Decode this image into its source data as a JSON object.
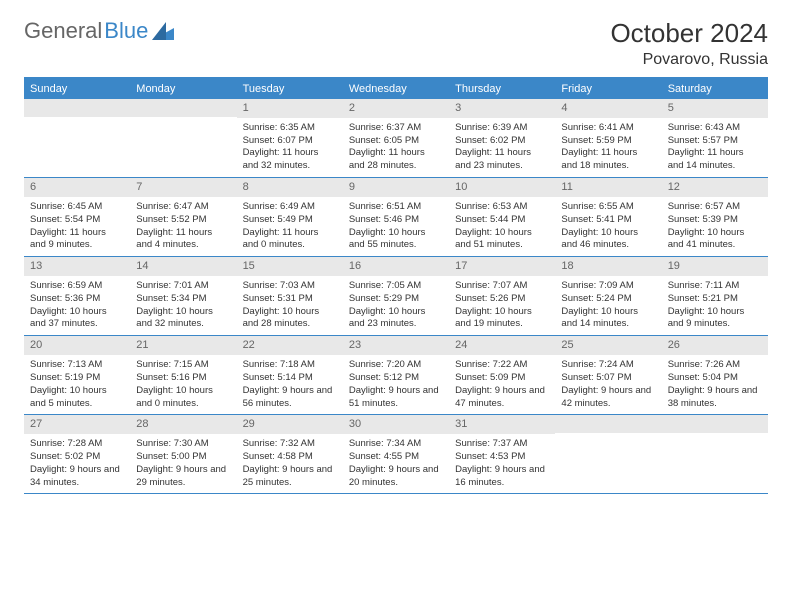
{
  "logo": {
    "text1": "General",
    "text2": "Blue"
  },
  "title": "October 2024",
  "location": "Povarovo, Russia",
  "colors": {
    "accent": "#3b87c8",
    "daynum_bg": "#e8e8e8",
    "text": "#333333",
    "muted": "#666666"
  },
  "weekdays": [
    "Sunday",
    "Monday",
    "Tuesday",
    "Wednesday",
    "Thursday",
    "Friday",
    "Saturday"
  ],
  "weeks": [
    [
      {
        "num": "",
        "sunrise": "",
        "sunset": "",
        "daylight": ""
      },
      {
        "num": "",
        "sunrise": "",
        "sunset": "",
        "daylight": ""
      },
      {
        "num": "1",
        "sunrise": "Sunrise: 6:35 AM",
        "sunset": "Sunset: 6:07 PM",
        "daylight": "Daylight: 11 hours and 32 minutes."
      },
      {
        "num": "2",
        "sunrise": "Sunrise: 6:37 AM",
        "sunset": "Sunset: 6:05 PM",
        "daylight": "Daylight: 11 hours and 28 minutes."
      },
      {
        "num": "3",
        "sunrise": "Sunrise: 6:39 AM",
        "sunset": "Sunset: 6:02 PM",
        "daylight": "Daylight: 11 hours and 23 minutes."
      },
      {
        "num": "4",
        "sunrise": "Sunrise: 6:41 AM",
        "sunset": "Sunset: 5:59 PM",
        "daylight": "Daylight: 11 hours and 18 minutes."
      },
      {
        "num": "5",
        "sunrise": "Sunrise: 6:43 AM",
        "sunset": "Sunset: 5:57 PM",
        "daylight": "Daylight: 11 hours and 14 minutes."
      }
    ],
    [
      {
        "num": "6",
        "sunrise": "Sunrise: 6:45 AM",
        "sunset": "Sunset: 5:54 PM",
        "daylight": "Daylight: 11 hours and 9 minutes."
      },
      {
        "num": "7",
        "sunrise": "Sunrise: 6:47 AM",
        "sunset": "Sunset: 5:52 PM",
        "daylight": "Daylight: 11 hours and 4 minutes."
      },
      {
        "num": "8",
        "sunrise": "Sunrise: 6:49 AM",
        "sunset": "Sunset: 5:49 PM",
        "daylight": "Daylight: 11 hours and 0 minutes."
      },
      {
        "num": "9",
        "sunrise": "Sunrise: 6:51 AM",
        "sunset": "Sunset: 5:46 PM",
        "daylight": "Daylight: 10 hours and 55 minutes."
      },
      {
        "num": "10",
        "sunrise": "Sunrise: 6:53 AM",
        "sunset": "Sunset: 5:44 PM",
        "daylight": "Daylight: 10 hours and 51 minutes."
      },
      {
        "num": "11",
        "sunrise": "Sunrise: 6:55 AM",
        "sunset": "Sunset: 5:41 PM",
        "daylight": "Daylight: 10 hours and 46 minutes."
      },
      {
        "num": "12",
        "sunrise": "Sunrise: 6:57 AM",
        "sunset": "Sunset: 5:39 PM",
        "daylight": "Daylight: 10 hours and 41 minutes."
      }
    ],
    [
      {
        "num": "13",
        "sunrise": "Sunrise: 6:59 AM",
        "sunset": "Sunset: 5:36 PM",
        "daylight": "Daylight: 10 hours and 37 minutes."
      },
      {
        "num": "14",
        "sunrise": "Sunrise: 7:01 AM",
        "sunset": "Sunset: 5:34 PM",
        "daylight": "Daylight: 10 hours and 32 minutes."
      },
      {
        "num": "15",
        "sunrise": "Sunrise: 7:03 AM",
        "sunset": "Sunset: 5:31 PM",
        "daylight": "Daylight: 10 hours and 28 minutes."
      },
      {
        "num": "16",
        "sunrise": "Sunrise: 7:05 AM",
        "sunset": "Sunset: 5:29 PM",
        "daylight": "Daylight: 10 hours and 23 minutes."
      },
      {
        "num": "17",
        "sunrise": "Sunrise: 7:07 AM",
        "sunset": "Sunset: 5:26 PM",
        "daylight": "Daylight: 10 hours and 19 minutes."
      },
      {
        "num": "18",
        "sunrise": "Sunrise: 7:09 AM",
        "sunset": "Sunset: 5:24 PM",
        "daylight": "Daylight: 10 hours and 14 minutes."
      },
      {
        "num": "19",
        "sunrise": "Sunrise: 7:11 AM",
        "sunset": "Sunset: 5:21 PM",
        "daylight": "Daylight: 10 hours and 9 minutes."
      }
    ],
    [
      {
        "num": "20",
        "sunrise": "Sunrise: 7:13 AM",
        "sunset": "Sunset: 5:19 PM",
        "daylight": "Daylight: 10 hours and 5 minutes."
      },
      {
        "num": "21",
        "sunrise": "Sunrise: 7:15 AM",
        "sunset": "Sunset: 5:16 PM",
        "daylight": "Daylight: 10 hours and 0 minutes."
      },
      {
        "num": "22",
        "sunrise": "Sunrise: 7:18 AM",
        "sunset": "Sunset: 5:14 PM",
        "daylight": "Daylight: 9 hours and 56 minutes."
      },
      {
        "num": "23",
        "sunrise": "Sunrise: 7:20 AM",
        "sunset": "Sunset: 5:12 PM",
        "daylight": "Daylight: 9 hours and 51 minutes."
      },
      {
        "num": "24",
        "sunrise": "Sunrise: 7:22 AM",
        "sunset": "Sunset: 5:09 PM",
        "daylight": "Daylight: 9 hours and 47 minutes."
      },
      {
        "num": "25",
        "sunrise": "Sunrise: 7:24 AM",
        "sunset": "Sunset: 5:07 PM",
        "daylight": "Daylight: 9 hours and 42 minutes."
      },
      {
        "num": "26",
        "sunrise": "Sunrise: 7:26 AM",
        "sunset": "Sunset: 5:04 PM",
        "daylight": "Daylight: 9 hours and 38 minutes."
      }
    ],
    [
      {
        "num": "27",
        "sunrise": "Sunrise: 7:28 AM",
        "sunset": "Sunset: 5:02 PM",
        "daylight": "Daylight: 9 hours and 34 minutes."
      },
      {
        "num": "28",
        "sunrise": "Sunrise: 7:30 AM",
        "sunset": "Sunset: 5:00 PM",
        "daylight": "Daylight: 9 hours and 29 minutes."
      },
      {
        "num": "29",
        "sunrise": "Sunrise: 7:32 AM",
        "sunset": "Sunset: 4:58 PM",
        "daylight": "Daylight: 9 hours and 25 minutes."
      },
      {
        "num": "30",
        "sunrise": "Sunrise: 7:34 AM",
        "sunset": "Sunset: 4:55 PM",
        "daylight": "Daylight: 9 hours and 20 minutes."
      },
      {
        "num": "31",
        "sunrise": "Sunrise: 7:37 AM",
        "sunset": "Sunset: 4:53 PM",
        "daylight": "Daylight: 9 hours and 16 minutes."
      },
      {
        "num": "",
        "sunrise": "",
        "sunset": "",
        "daylight": ""
      },
      {
        "num": "",
        "sunrise": "",
        "sunset": "",
        "daylight": ""
      }
    ]
  ]
}
